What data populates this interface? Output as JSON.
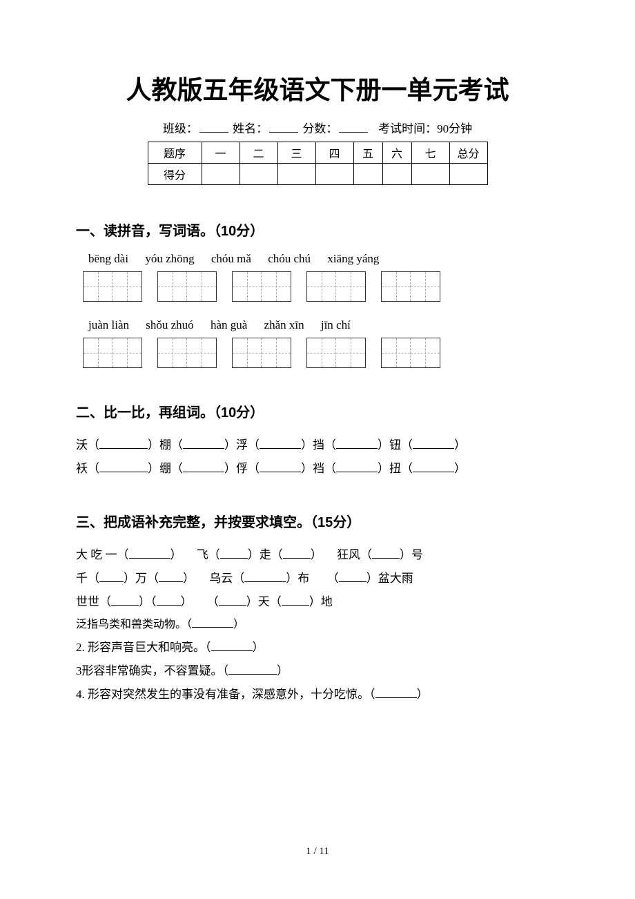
{
  "title": "人教版五年级语文下册一单元考试",
  "header": {
    "class_label": "班级：",
    "name_label": "姓名：",
    "score_label": "分数：",
    "time_label": "考试时间：90分钟"
  },
  "score_table": {
    "row1_label": "题序",
    "cols": [
      "一",
      "二",
      "三",
      "四",
      "五",
      "六",
      "七",
      "总分"
    ],
    "row2_label": "得分"
  },
  "section1": {
    "title": "一、读拼音，写词语。（10分）",
    "pinyin_row1": [
      "bēng dài",
      "yóu zhōng",
      "chóu mǎ",
      "chóu chú",
      "xiāng yáng"
    ],
    "pinyin_row2": [
      "juàn liàn",
      "shǒu zhuó",
      "hàn guà",
      "zhǎn xīn",
      "jīn chí"
    ]
  },
  "section2": {
    "title": "二、比一比，再组词。（10分）",
    "line1_chars": [
      "沃",
      "棚",
      "浮",
      "挡",
      "钮"
    ],
    "line2_chars": [
      "袄",
      "绷",
      "俘",
      "裆",
      "扭"
    ]
  },
  "section3": {
    "title": "三、把成语补充完整，并按要求填空。（15分）",
    "idiom1_a": "大 吃 一（",
    "idiom1_b": "）",
    "idiom2_a": "飞（",
    "idiom2_b": "）走（",
    "idiom2_c": "）",
    "idiom3_a": "狂风（",
    "idiom3_b": "）号",
    "idiom4_a": "千（",
    "idiom4_b": "）万（",
    "idiom4_c": "）",
    "idiom5_a": "乌云（",
    "idiom5_b": "）布",
    "idiom6_a": "（",
    "idiom6_b": "）盆大雨",
    "idiom7_a": "世世（",
    "idiom7_b": "）（",
    "idiom7_c": "）",
    "idiom8_a": "（",
    "idiom8_b": "）天（",
    "idiom8_c": "）地",
    "q1": "泛指鸟类和兽类动物。（",
    "q1_end": "）",
    "q2": "2. 形容声音巨大和响亮。（",
    "q2_end": "）",
    "q3": "3形容非常确实，不容置疑。（",
    "q3_end": "）",
    "q4": "4. 形容对突然发生的事没有准备，深感意外，十分吃惊。（",
    "q4_end": "）"
  },
  "footer": "1 / 11"
}
